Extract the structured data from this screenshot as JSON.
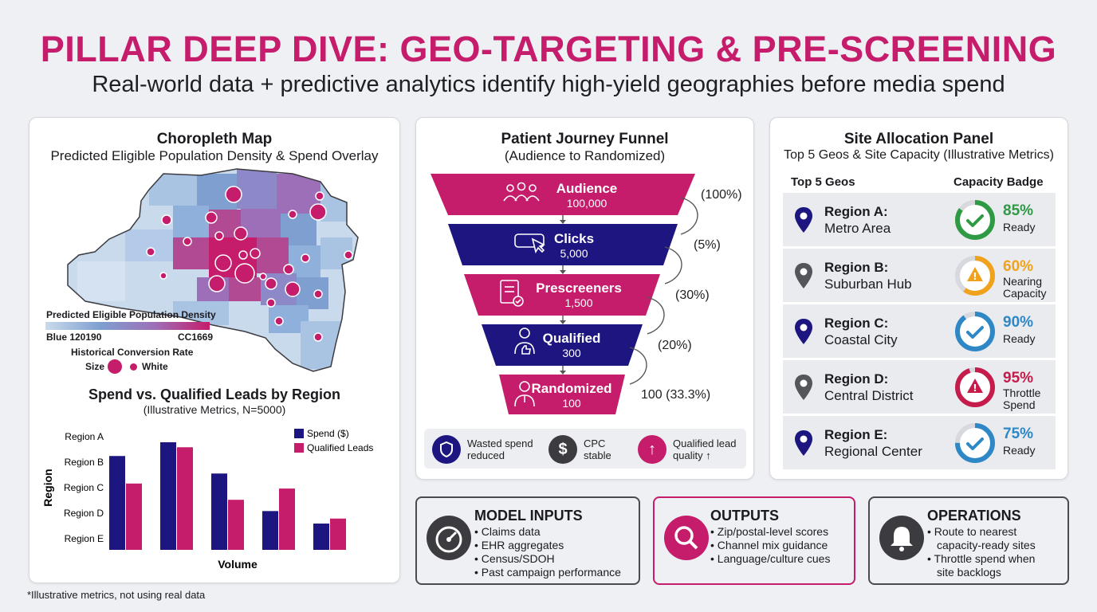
{
  "header": {
    "title": "PILLAR DEEP DIVE: GEO-TARGETING & PRE-SCREENING",
    "subtitle": "Real-world data + predictive analytics identify high-yield geographies before media spend"
  },
  "map_card": {
    "title": "Choropleth Map",
    "subtitle": "Predicted Eligible Population Density & Spend Overlay",
    "legend_title": "Predicted Eligible Population Density",
    "legend_low": "Blue 120190",
    "legend_high": "CC1669",
    "conversion_title": "Historical Conversion Rate",
    "size_label": "Size",
    "white_label": "White",
    "colors": {
      "low": "#c9daec",
      "mid": "#7f9fd0",
      "high": "#c51c6b"
    }
  },
  "chart_data": {
    "type": "bar",
    "title": "Spend vs. Qualified Leads by Region",
    "subtitle": "(Illustrative Metrics, N=5000)",
    "xlabel": "Volume",
    "ylabel": "Region",
    "categories": [
      "Region A",
      "Region B",
      "Region C",
      "Region D",
      "Region E"
    ],
    "series": [
      {
        "name": "Spend ($)",
        "color": "#1d1580",
        "values": [
          75,
          86,
          61,
          31,
          21
        ]
      },
      {
        "name": "Qualified Leads",
        "color": "#c51c6b",
        "values": [
          53,
          82,
          40,
          49,
          25
        ]
      }
    ],
    "ylim": [
      0,
      100
    ],
    "grid": false,
    "legend": "top-right"
  },
  "funnel": {
    "title": "Patient Journey Funnel",
    "subtitle": "(Audience to Randomized)",
    "stages": [
      {
        "label": "Audience",
        "value": "100,000",
        "pct": "(100%)",
        "icon": "people-icon"
      },
      {
        "label": "Clicks",
        "value": "5,000",
        "pct": "(5%)",
        "icon": "cursor-click-icon"
      },
      {
        "label": "Prescreeners",
        "value": "1,500",
        "pct": "(30%)",
        "icon": "clipboard-check-icon"
      },
      {
        "label": "Qualified",
        "value": "300",
        "pct": "(20%)",
        "icon": "thumbs-up-icon"
      },
      {
        "label": "Randomized",
        "value": "100",
        "pct": "100 (33.3%)",
        "icon": "doctor-icon"
      }
    ],
    "benefits": [
      {
        "line1": "Wasted spend",
        "line2": "reduced",
        "icon": "shield-icon"
      },
      {
        "line1": "CPC",
        "line2": "stable",
        "icon": "dollar-icon"
      },
      {
        "line1": "Qualified lead",
        "line2": "quality ↑",
        "icon": "arrow-up-icon"
      }
    ]
  },
  "site_panel": {
    "title": "Site Allocation Panel",
    "subtitle": "Top 5 Geos & Site Capacity (Illustrative Metrics)",
    "col_geos": "Top 5 Geos",
    "col_capacity": "Capacity Badge",
    "regions": [
      {
        "name": "Region A:",
        "desc": "Metro Area",
        "pct": "85%",
        "capacity": 0.85,
        "status1": "Ready",
        "status2": "",
        "color": "#2e9a44",
        "pin_color": "#1d1580",
        "icon": "check-icon"
      },
      {
        "name": "Region B:",
        "desc": "Suburban Hub",
        "pct": "60%",
        "capacity": 0.6,
        "status1": "Nearing",
        "status2": "Capacity",
        "color": "#f0a21c",
        "pin_color": "#55555c",
        "icon": "warning-icon"
      },
      {
        "name": "Region C:",
        "desc": "Coastal City",
        "pct": "90%",
        "capacity": 0.9,
        "status1": "Ready",
        "status2": "",
        "color": "#2e88c6",
        "pin_color": "#1d1580",
        "icon": "check-icon"
      },
      {
        "name": "Region D:",
        "desc": "Central District",
        "pct": "95%",
        "capacity": 0.95,
        "status1": "Throttle",
        "status2": "Spend",
        "color": "#c51c4b",
        "pin_color": "#55555c",
        "icon": "warning-icon"
      },
      {
        "name": "Region E:",
        "desc": "Regional Center",
        "pct": "75%",
        "capacity": 0.75,
        "status1": "Ready",
        "status2": "",
        "color": "#2e88c6",
        "pin_color": "#1d1580",
        "icon": "check-icon"
      }
    ]
  },
  "boxes": {
    "inputs": {
      "title": "MODEL INPUTS",
      "items": [
        "Claims data",
        "EHR aggregates",
        "Census/SDOH",
        "Past campaign performance"
      ]
    },
    "outputs": {
      "title": "OUTPUTS",
      "items": [
        "Zip/postal-level scores",
        "Channel mix guidance",
        "Language/culture cues"
      ]
    },
    "operations": {
      "title": "OPERATIONS",
      "items": [
        "Route to nearest",
        "capacity-ready sites",
        "Throttle spend when",
        "site backlogs"
      ]
    }
  },
  "footnote": "*Illustrative metrics, not using real data",
  "colors": {
    "brand": "#c51c6b",
    "navy": "#1d1580"
  }
}
